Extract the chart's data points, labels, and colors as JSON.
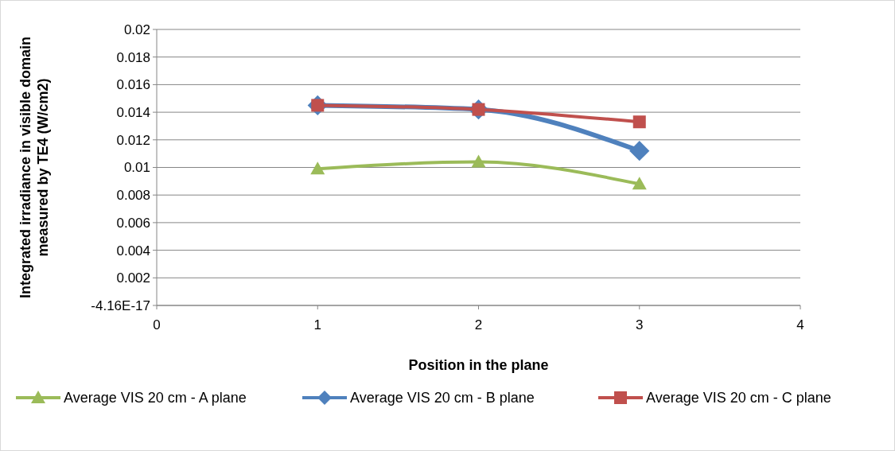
{
  "chart_data": {
    "type": "line",
    "xlabel": "Position in the plane",
    "ylabel": "Integrated irradiance in visible domain\nmeasured by TE4 (W/cm2)",
    "x": [
      1,
      2,
      3
    ],
    "series": [
      {
        "name": "Average VIS 20 cm - A plane",
        "color": "#9bbb59",
        "marker": "triangle",
        "values": [
          0.0099,
          0.0104,
          0.0088
        ]
      },
      {
        "name": "Average VIS 20 cm - B plane",
        "color": "#4f81bd",
        "marker": "diamond",
        "values": [
          0.0145,
          0.0142,
          0.0112
        ]
      },
      {
        "name": "Average VIS 20 cm - C plane",
        "color": "#c0504d",
        "marker": "square",
        "values": [
          0.0145,
          0.0142,
          0.0133
        ]
      }
    ],
    "xlim": [
      0,
      4
    ],
    "xticks": [
      0,
      1,
      2,
      3,
      4
    ],
    "ylim": [
      0,
      0.02
    ],
    "yticks": [
      {
        "value": 0,
        "label": "-4.16E-17"
      },
      0.002,
      0.004,
      0.006,
      0.008,
      0.01,
      0.012,
      0.014,
      0.016,
      0.018,
      0.02
    ],
    "grid": "y",
    "legend": "bottom"
  }
}
